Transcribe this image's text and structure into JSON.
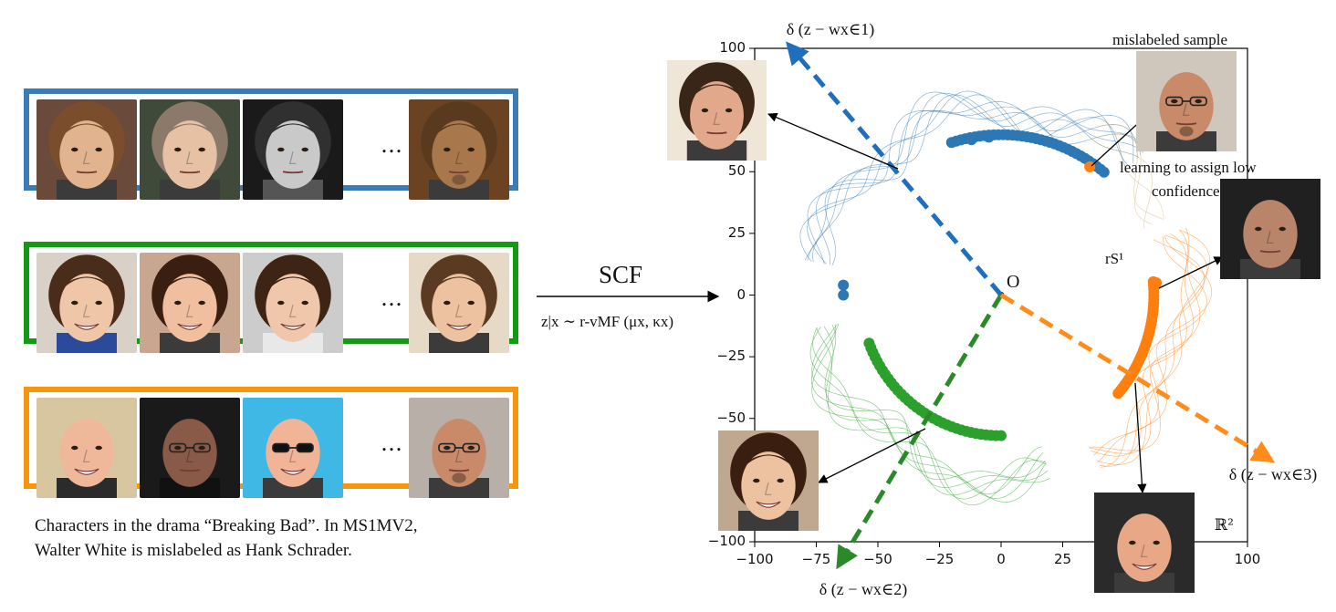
{
  "left_panel": {
    "groups": [
      {
        "color": "#3a7bb8",
        "ellipsis": "…"
      },
      {
        "color": "#129a12",
        "ellipsis": "…"
      },
      {
        "color": "#f7950f",
        "ellipsis": "…"
      }
    ],
    "caption_line1": "Characters in the drama “Breaking Bad”. In MS1MV2,",
    "caption_line2": "Walter White is mislabeled as Hank Schrader."
  },
  "method": {
    "label": "SCF",
    "distribution": "z|x ∼ r-vMF (μx, κx)"
  },
  "chart_data": {
    "type": "scatter",
    "xlim": [
      -100,
      100
    ],
    "ylim": [
      -100,
      100
    ],
    "xticks": [
      "−100",
      "−75",
      "−50",
      "−25",
      "0",
      "25",
      "50",
      "75",
      "100"
    ],
    "yticks": [
      "100",
      "75",
      "50",
      "25",
      "0",
      "−25",
      "−50",
      "−75",
      "−100"
    ],
    "xtick_values": [
      -100,
      -75,
      -50,
      -25,
      0,
      25,
      50,
      75,
      100
    ],
    "ytick_values": [
      100,
      75,
      50,
      25,
      0,
      -25,
      -50,
      -75,
      -100
    ],
    "origin_label": "O",
    "sphere_label": "rS¹",
    "space_label": "ℝ²",
    "series": [
      {
        "color": "#2c77b4",
        "arc_deg": [
          50,
          108
        ],
        "radius": 65,
        "extra_points": [
          [
            -12,
            63
          ],
          [
            -5,
            64
          ]
        ]
      },
      {
        "color": "#2ca02c",
        "arc_deg": [
          200,
          270
        ],
        "radius": 57
      },
      {
        "color": "#ff7f0e",
        "arc_deg": [
          320,
          365
        ],
        "radius": 62,
        "extra_points": [
          [
            36,
            52
          ]
        ]
      }
    ],
    "directions": [
      {
        "label": "δ (z − wx∈1)",
        "color": "#1f6fbf",
        "end": [
          -85,
          100
        ]
      },
      {
        "label": "δ (z − wx∈2)",
        "color": "#2a8a2a",
        "end": [
          -65,
          -108
        ]
      },
      {
        "label": "δ (z − wx∈3)",
        "color": "#ff8c1a",
        "end": [
          108,
          -66
        ]
      }
    ]
  },
  "annotations": {
    "mislabeled": "mislabeled sample",
    "low_conf_line1": "learning to assign low",
    "low_conf_line2": "confidence"
  }
}
